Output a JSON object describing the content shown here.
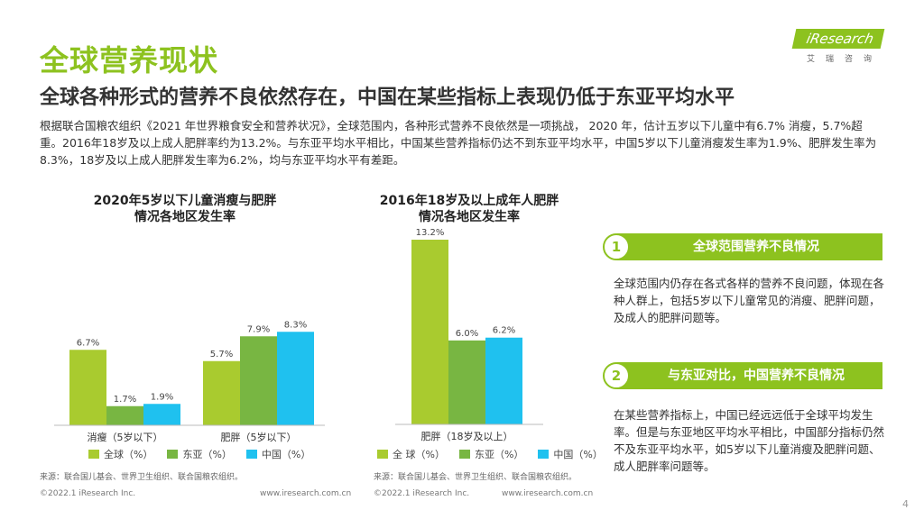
{
  "page": {
    "title": "全球营养现状",
    "subtitle": "全球各种形式的营养不良依然存在，中国在某些指标上表现仍低于东亚平均水平",
    "intro": "根据联合国粮农组织《2021 年世界粮食安全和营养状况》，全球范围内，各种形式营养不良依然是一项挑战， 2020 年，估计五岁以下儿童中有6.7% 消瘦，5.7%超重。2016年18岁及以上成人肥胖率约为13.2%。与东亚平均水平相比，中国某些营养指标仍达不到东亚平均水平，中国5岁以下儿童消瘦发生率为1.9%、肥胖发生率为8.3%，18岁及以上成人肥胖发生率为6.2%，均与东亚平均水平有差距。",
    "page_number": "4"
  },
  "logo": {
    "brand": "iResearch",
    "sub": "艾瑞咨询"
  },
  "colors": {
    "green_light": "#a9cb2f",
    "green_mid": "#78b642",
    "cyan": "#1fc1ef",
    "accent": "#8dc21f"
  },
  "chart_data": [
    {
      "type": "bar",
      "title_line1": "2020年5岁以下儿童消瘦与肥胖",
      "title_line2": "情况各地区发生率",
      "categories": [
        "消瘦（5岁以下）",
        "肥胖（5岁以下）"
      ],
      "series": [
        {
          "name": "全球（%）",
          "values": [
            6.7,
            5.7
          ],
          "labels": [
            "6.7%",
            "5.7%"
          ]
        },
        {
          "name": "东亚（%）",
          "values": [
            1.7,
            7.9
          ],
          "labels": [
            "1.7%",
            "7.9%"
          ]
        },
        {
          "name": "中国（%）",
          "values": [
            1.9,
            8.3
          ],
          "labels": [
            "1.9%",
            "8.3%"
          ]
        }
      ],
      "ylim": [
        0,
        10
      ]
    },
    {
      "type": "bar",
      "title_line1": "2016年18岁及以上成年人肥胖",
      "title_line2": "情况各地区发生率",
      "categories": [
        "肥胖（18岁及以上）"
      ],
      "series": [
        {
          "name": "全 球（%）",
          "values": [
            13.2
          ],
          "labels": [
            "13.2%"
          ]
        },
        {
          "name": "东亚（%）",
          "values": [
            6.0
          ],
          "labels": [
            "6.0%"
          ]
        },
        {
          "name": "中国（%）",
          "values": [
            6.2
          ],
          "labels": [
            "6.2%"
          ]
        }
      ],
      "ylim": [
        0,
        13.2
      ]
    }
  ],
  "sources": {
    "left": "来源：联合国儿基会、世界卫生组织、联合国粮农组织。",
    "right": "来源：联合国儿基会、世界卫生组织、联合国粮农组织。"
  },
  "footer": {
    "copyright_left": "©2022.1 iResearch Inc.",
    "url_left": "www.iresearch.com.cn",
    "copyright_right": "©2022.1 iResearch Inc.",
    "url_right": "www.iresearch.com.cn"
  },
  "panels": [
    {
      "number": "1",
      "label": "全球范围营养不良情况",
      "text": "全球范围内仍存在各式各样的营养不良问题，体现在各种人群上，包括5岁以下儿童常见的消瘦、肥胖问题，及成人的肥胖问题等。"
    },
    {
      "number": "2",
      "label": "与东亚对比，中国营养不良情况",
      "text": "在某些营养指标上，中国已经远远低于全球平均发生率。但是与东亚地区平均水平相比，中国部分指标仍然不及东亚平均水平，如5岁以下儿童消瘦及肥胖问题、成人肥胖率问题等。"
    }
  ]
}
